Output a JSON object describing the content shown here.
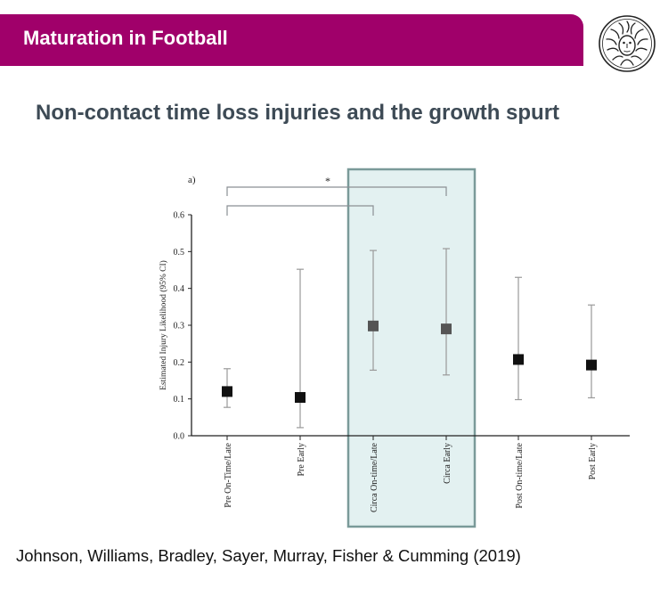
{
  "header": {
    "title": "Maturation in Football",
    "brand_color": "#a0006a",
    "logo_icon": "medusa-head-seal-icon"
  },
  "slide": {
    "subtitle": "Non-contact time loss injuries and the growth spurt",
    "citation": "Johnson, Williams, Bradley, Sayer, Murray, Fisher & Cumming (2019)"
  },
  "chart_data": {
    "type": "scatter",
    "panel_label": "a)",
    "ylabel": "Estimated Injury Likelihood (95% CI)",
    "ylim": [
      0,
      0.6
    ],
    "yticks": [
      "0.0",
      "0.1",
      "0.2",
      "0.3",
      "0.4",
      "0.5",
      "0.6"
    ],
    "categories": [
      "Pre On-Time/Late",
      "Pre Early",
      "Circa On-time/Late",
      "Circa Early",
      "Post On-time/Late",
      "Post Early"
    ],
    "values": [
      0.12,
      0.104,
      0.298,
      0.29,
      0.207,
      0.192
    ],
    "ci_lower": [
      0.077,
      0.022,
      0.178,
      0.165,
      0.098,
      0.103
    ],
    "ci_upper": [
      0.182,
      0.452,
      0.503,
      0.508,
      0.43,
      0.355
    ],
    "marker_colors": [
      "#111111",
      "#111111",
      "#555555",
      "#555555",
      "#111111",
      "#111111"
    ],
    "highlight": {
      "categories": [
        "Circa On-time/Late",
        "Circa Early"
      ],
      "fill": "#e3f1f1",
      "stroke": "#7a9a99"
    },
    "comparisons": [
      {
        "from": "Pre On-Time/Late",
        "to": "Circa Early",
        "label": "*"
      },
      {
        "from": "Pre On-Time/Late",
        "to": "Circa On-time/Late",
        "label": ""
      }
    ]
  }
}
